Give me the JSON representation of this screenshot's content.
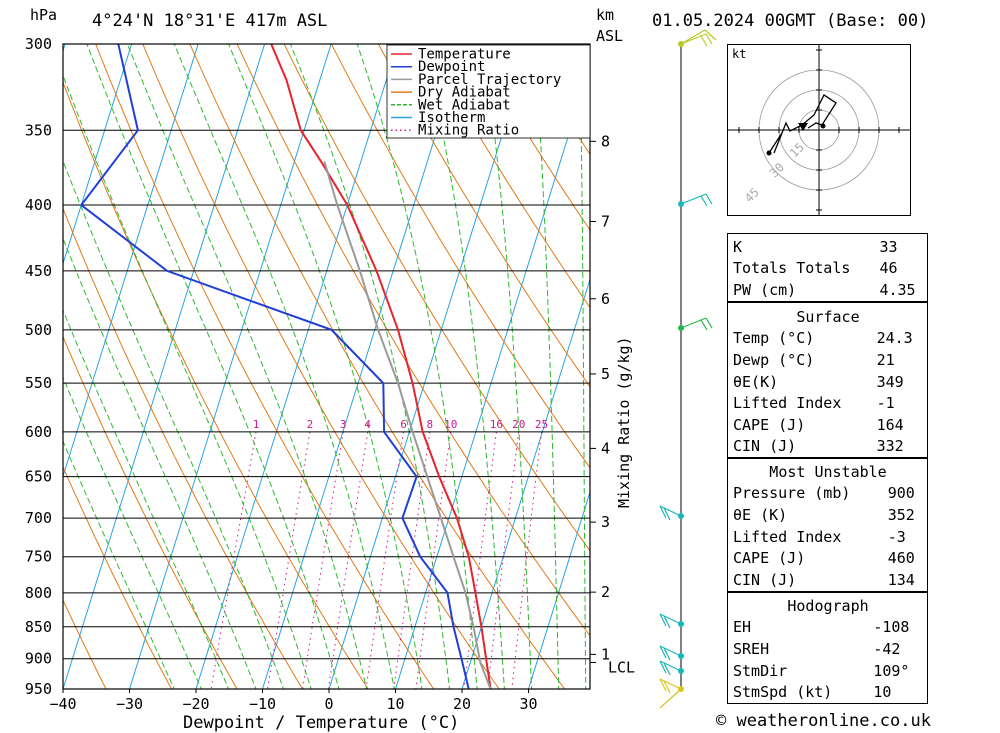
{
  "header": {
    "hpa_label": "hPa",
    "location": "4°24'N  18°31'E  417m  ASL",
    "km_label": "km",
    "asl_label": "ASL",
    "datetime": "01.05.2024  00GMT  (Base: 00)"
  },
  "footer": {
    "copyright": "© weatheronline.co.uk"
  },
  "chart_data": {
    "type": "line",
    "xlabel": "Dewpoint / Temperature (°C)",
    "ylabel_right": "Mixing Ratio (g/kg)",
    "xlim": [
      -40,
      40
    ],
    "pressure_range": [
      300,
      950
    ],
    "x_ticks": [
      -40,
      -30,
      -20,
      -10,
      0,
      10,
      20,
      30
    ],
    "pressure_ticks": [
      300,
      350,
      400,
      450,
      500,
      550,
      600,
      650,
      700,
      750,
      800,
      850,
      900,
      950
    ],
    "km_ticks": [
      {
        "label": "1",
        "p": 893
      },
      {
        "label": "2",
        "p": 799
      },
      {
        "label": "3",
        "p": 705
      },
      {
        "label": "4",
        "p": 618
      },
      {
        "label": "5",
        "p": 541
      },
      {
        "label": "6",
        "p": 473
      },
      {
        "label": "7",
        "p": 412
      },
      {
        "label": "8",
        "p": 357
      }
    ],
    "lcl": {
      "label": "LCL",
      "p": 906
    },
    "mixing_ratio_labels": [
      "1",
      "2",
      "3",
      "4",
      "6",
      "8",
      "10",
      "16",
      "20",
      "25"
    ],
    "legend": {
      "position": "top-right",
      "entries": [
        {
          "name": "Temperature",
          "color": "#e8232b"
        },
        {
          "name": "Dewpoint",
          "color": "#1f3fd6"
        },
        {
          "name": "Parcel Trajectory",
          "color": "#9a9a9a"
        },
        {
          "name": "Dry Adiabat",
          "color": "#e07a18"
        },
        {
          "name": "Wet Adiabat",
          "color": "#2fb82f"
        },
        {
          "name": "Isotherm",
          "color": "#2aa3e0"
        },
        {
          "name": "Mixing Ratio",
          "color": "#d0188c"
        }
      ]
    },
    "series": [
      {
        "name": "Temperature",
        "points": [
          [
            950,
            24.3
          ],
          [
            900,
            22.2
          ],
          [
            850,
            20
          ],
          [
            800,
            17.5
          ],
          [
            750,
            14.8
          ],
          [
            700,
            11.2
          ],
          [
            650,
            6.6
          ],
          [
            600,
            2
          ],
          [
            550,
            -1.8
          ],
          [
            500,
            -6.5
          ],
          [
            450,
            -12.5
          ],
          [
            400,
            -20
          ],
          [
            370,
            -26
          ],
          [
            350,
            -30.5
          ],
          [
            320,
            -35
          ],
          [
            300,
            -39
          ]
        ]
      },
      {
        "name": "Dewpoint",
        "points": [
          [
            950,
            21
          ],
          [
            900,
            18.5
          ],
          [
            850,
            15.8
          ],
          [
            800,
            13.3
          ],
          [
            750,
            7.5
          ],
          [
            700,
            3.0
          ],
          [
            650,
            3.2
          ],
          [
            600,
            -3.8
          ],
          [
            550,
            -6.2
          ],
          [
            500,
            -16.5
          ],
          [
            450,
            -44
          ],
          [
            400,
            -60
          ],
          [
            350,
            -55
          ],
          [
            300,
            -62
          ]
        ]
      },
      {
        "name": "Parcel Trajectory",
        "points": [
          [
            950,
            24.3
          ],
          [
            906,
            21.5
          ],
          [
            850,
            18.8
          ],
          [
            800,
            16.0
          ],
          [
            750,
            12.5
          ],
          [
            700,
            8.8
          ],
          [
            650,
            4.8
          ],
          [
            600,
            0.5
          ],
          [
            550,
            -4.0
          ],
          [
            500,
            -9.5
          ],
          [
            450,
            -15.0
          ],
          [
            400,
            -21.5
          ],
          [
            370,
            -25.5
          ]
        ]
      }
    ]
  },
  "hodograph": {
    "unit": "kt",
    "rings": [
      "15",
      "30",
      "45"
    ]
  },
  "indices": {
    "general": [
      {
        "label": "K",
        "value": "33"
      },
      {
        "label": "Totals Totals",
        "value": "46"
      },
      {
        "label": "PW (cm)",
        "value": "4.35"
      }
    ],
    "surface": {
      "title": "Surface",
      "rows": [
        {
          "label": "Temp (°C)",
          "value": "24.3"
        },
        {
          "label": "Dewp (°C)",
          "value": "21"
        },
        {
          "label": "θE(K)",
          "value": "349"
        },
        {
          "label": "Lifted Index",
          "value": "-1"
        },
        {
          "label": "CAPE (J)",
          "value": "164"
        },
        {
          "label": "CIN (J)",
          "value": "332"
        }
      ]
    },
    "most_unstable": {
      "title": "Most Unstable",
      "rows": [
        {
          "label": "Pressure (mb)",
          "value": "900"
        },
        {
          "label": "θE (K)",
          "value": "352"
        },
        {
          "label": "Lifted Index",
          "value": "-3"
        },
        {
          "label": "CAPE (J)",
          "value": "460"
        },
        {
          "label": "CIN (J)",
          "value": "134"
        }
      ]
    },
    "hodograph": {
      "title": "Hodograph",
      "rows": [
        {
          "label": "EH",
          "value": "-108"
        },
        {
          "label": "SREH",
          "value": "-42"
        },
        {
          "label": "StmDir",
          "value": "109°"
        },
        {
          "label": "StmSpd (kt)",
          "value": "10"
        }
      ]
    }
  }
}
